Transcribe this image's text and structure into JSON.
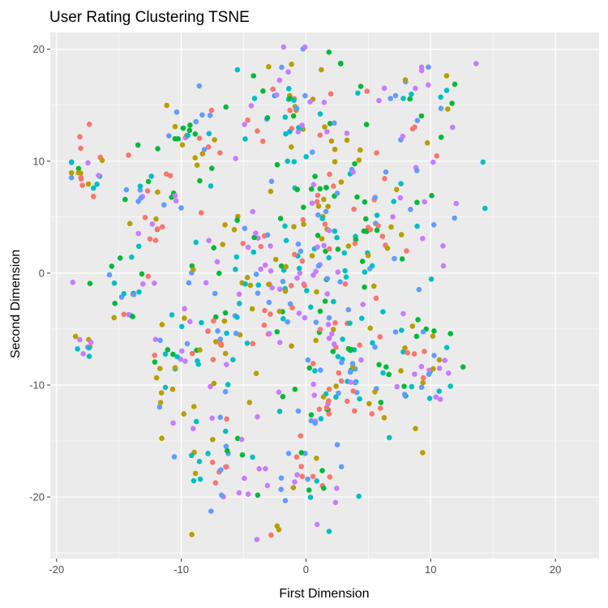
{
  "chart_data": {
    "type": "scatter",
    "title": "User Rating Clustering TSNE",
    "xlabel": "First Dimension",
    "ylabel": "Second Dimension",
    "xlim": [
      -20.5,
      23.5
    ],
    "ylim": [
      -25.5,
      21.5
    ],
    "x_ticks": [
      -20,
      -10,
      0,
      10,
      20
    ],
    "x_tick_labels": [
      "-20",
      "-10",
      "0",
      "10",
      "20"
    ],
    "y_ticks": [
      -20,
      -10,
      0,
      10,
      20
    ],
    "y_tick_labels": [
      "-20",
      "-10",
      "0",
      "10",
      "20"
    ],
    "grid": true,
    "legend": "none",
    "panel_background": "#ebebeb",
    "grid_color": "#ffffff",
    "point_count": 720,
    "colors": [
      "#f8766d",
      "#b79f00",
      "#00ba38",
      "#00bfc4",
      "#619cff",
      "#c77cff"
    ]
  }
}
